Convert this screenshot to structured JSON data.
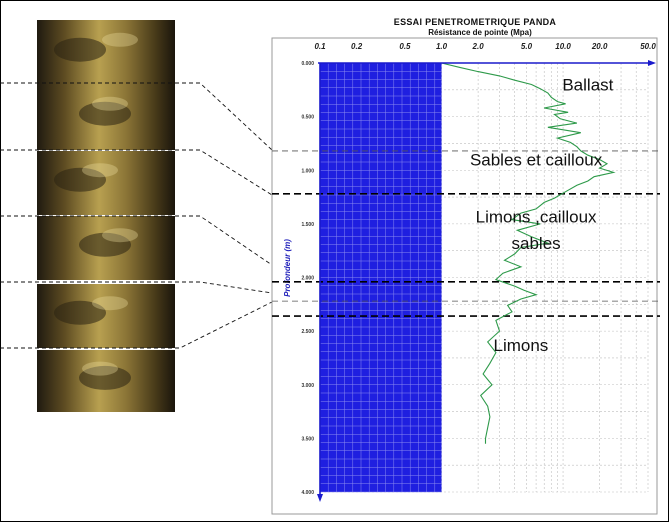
{
  "colors": {
    "plot_fill": "#1f1fe0",
    "grid_in_fill": "#8a8af0",
    "axis": "#1a1acc",
    "curve": "#2e9a4a",
    "grid": "#bfbfbf",
    "boundary": "#000000",
    "photo_dark": "#2a2416",
    "photo_mid": "#7a6630",
    "photo_light": "#d6c078"
  },
  "chart_data": {
    "type": "line",
    "title": "ESSAI PENETROMETRIQUE PANDA",
    "subtitle": "Résistance de pointe (Mpa)",
    "ylabel": "Profondeur (m)",
    "x_scale": "log",
    "xlim": [
      0.1,
      50
    ],
    "ylim": [
      0,
      4
    ],
    "x_tick_labels": [
      "0.1",
      "0.2",
      "0.5",
      "1.0",
      "2.0",
      "5.0",
      "10.0",
      "20.0",
      "50.0"
    ],
    "x_ticks": [
      0.1,
      0.2,
      0.5,
      1,
      2,
      5,
      10,
      20,
      50
    ],
    "y_tick_labels": [
      "0.000",
      "0.500",
      "1.000",
      "1.500",
      "2.000",
      "2.500",
      "3.000",
      "3.500",
      "4.000"
    ],
    "y_ticks": [
      0,
      0.5,
      1,
      1.5,
      2,
      2.5,
      3,
      3.5,
      4
    ],
    "grid": true,
    "shaded_x_range": [
      0.1,
      1.0
    ],
    "series": [
      {
        "depth": [
          0.0,
          0.04,
          0.08,
          0.12,
          0.16,
          0.2,
          0.24,
          0.28,
          0.32,
          0.36,
          0.38,
          0.42,
          0.46,
          0.48,
          0.52,
          0.56,
          0.6,
          0.65,
          0.7,
          0.74,
          0.78,
          0.82,
          0.86,
          0.9,
          0.94,
          0.98,
          1.02,
          1.06,
          1.1,
          1.14,
          1.2,
          1.26,
          1.3,
          1.36,
          1.4,
          1.46,
          1.5,
          1.56,
          1.62,
          1.68,
          1.72,
          1.78,
          1.84,
          1.9,
          1.96,
          2.02,
          2.08,
          2.12,
          2.16,
          2.2,
          2.26,
          2.32,
          2.4,
          2.5,
          2.6,
          2.7,
          2.8,
          2.9,
          3.0,
          3.1,
          3.2,
          3.3,
          3.4,
          3.5,
          3.55
        ],
        "resistance": [
          1.0,
          1.4,
          2.0,
          3.0,
          4.0,
          5.5,
          6.5,
          7.5,
          8.0,
          9.0,
          10.5,
          7.0,
          11.0,
          8.5,
          9.5,
          13.0,
          7.5,
          14.0,
          9.0,
          11.5,
          13.0,
          14.0,
          16.0,
          20.0,
          23.0,
          20.0,
          26.0,
          18.0,
          16.0,
          13.0,
          10.5,
          8.5,
          7.0,
          6.0,
          4.5,
          3.8,
          6.5,
          4.2,
          5.5,
          7.5,
          4.5,
          4.0,
          3.3,
          4.5,
          3.2,
          2.8,
          4.0,
          4.8,
          6.0,
          4.5,
          3.5,
          3.8,
          2.8,
          3.0,
          2.4,
          2.8,
          2.5,
          2.2,
          2.6,
          2.1,
          2.4,
          2.5,
          2.4,
          2.3,
          2.3
        ]
      }
    ],
    "layers": [
      {
        "label": "Ballast",
        "x": 16,
        "depth": 0.2
      },
      {
        "label": "Sables et cailloux",
        "x": 6,
        "depth": 0.9
      },
      {
        "label": "Limons ,cailloux",
        "x": 6,
        "depth": 1.43
      },
      {
        "label": "sables",
        "x": 6,
        "depth": 1.68
      },
      {
        "label": "Limons",
        "x": 4.5,
        "depth": 2.63
      }
    ],
    "boundary_depths_solid": [
      1.22,
      2.04,
      2.36
    ],
    "boundary_depths_dashed": [
      0.82,
      2.22
    ]
  },
  "photos": [
    {
      "name": "photo-segment-1"
    },
    {
      "name": "photo-segment-2"
    },
    {
      "name": "photo-segment-3"
    },
    {
      "name": "photo-segment-4"
    },
    {
      "name": "photo-segment-5"
    },
    {
      "name": "photo-segment-6"
    }
  ]
}
